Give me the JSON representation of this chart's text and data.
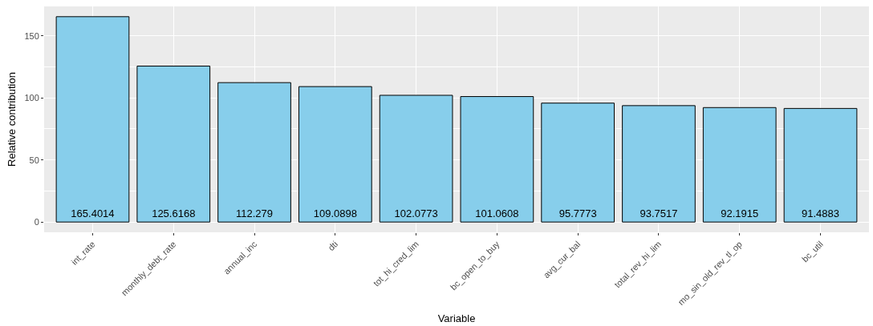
{
  "chart_data": {
    "type": "bar",
    "xlabel": "Variable",
    "ylabel": "Relative contribution",
    "categories": [
      "int_rate",
      "monthly_debt_rate",
      "annual_inc",
      "dti",
      "tot_hi_cred_lim",
      "bc_open_to_buy",
      "avg_cur_bal",
      "total_rev_hi_lim",
      "mo_sin_old_rev_tl_op",
      "bc_util"
    ],
    "values": [
      165.4014,
      125.6168,
      112.279,
      109.0898,
      102.0773,
      101.0608,
      95.7773,
      93.7517,
      92.1915,
      91.4883
    ],
    "color": "#87ceeb",
    "data_labels": true,
    "grid": true,
    "legend": false,
    "ylim": [
      -8.27,
      173.67
    ],
    "yticks": [
      0,
      50,
      100,
      150
    ]
  }
}
